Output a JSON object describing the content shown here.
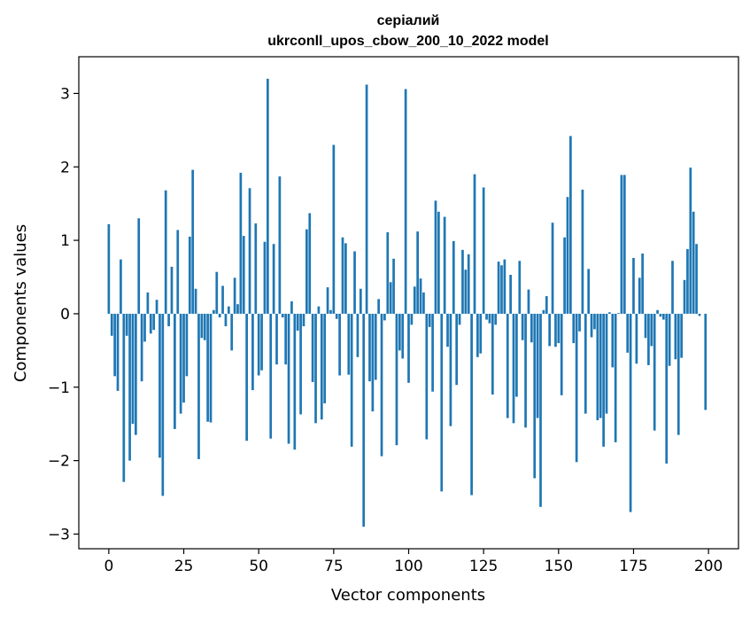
{
  "chart_data": {
    "type": "bar",
    "title_lines": [
      "серіалий",
      "ukrconll_upos_cbow_200_10_2022 model"
    ],
    "xlabel": "Vector components",
    "ylabel": "Components values",
    "xlim": [
      -10,
      210
    ],
    "ylim": [
      -3.2,
      3.5
    ],
    "xticks": [
      0,
      25,
      50,
      75,
      100,
      125,
      150,
      175,
      200
    ],
    "yticks": [
      -3,
      -2,
      -1,
      0,
      1,
      2,
      3
    ],
    "ytick_labels": [
      "−3",
      "−2",
      "−1",
      "0",
      "1",
      "2",
      "3"
    ],
    "bar_color": "#1f77b4",
    "grid": false,
    "x": [
      0,
      1,
      2,
      3,
      4,
      5,
      6,
      7,
      8,
      9,
      10,
      11,
      12,
      13,
      14,
      15,
      16,
      17,
      18,
      19,
      20,
      21,
      22,
      23,
      24,
      25,
      26,
      27,
      28,
      29,
      30,
      31,
      32,
      33,
      34,
      35,
      36,
      37,
      38,
      39,
      40,
      41,
      42,
      43,
      44,
      45,
      46,
      47,
      48,
      49,
      50,
      51,
      52,
      53,
      54,
      55,
      56,
      57,
      58,
      59,
      60,
      61,
      62,
      63,
      64,
      65,
      66,
      67,
      68,
      69,
      70,
      71,
      72,
      73,
      74,
      75,
      76,
      77,
      78,
      79,
      80,
      81,
      82,
      83,
      84,
      85,
      86,
      87,
      88,
      89,
      90,
      91,
      92,
      93,
      94,
      95,
      96,
      97,
      98,
      99,
      100,
      101,
      102,
      103,
      104,
      105,
      106,
      107,
      108,
      109,
      110,
      111,
      112,
      113,
      114,
      115,
      116,
      117,
      118,
      119,
      120,
      121,
      122,
      123,
      124,
      125,
      126,
      127,
      128,
      129,
      130,
      131,
      132,
      133,
      134,
      135,
      136,
      137,
      138,
      139,
      140,
      141,
      142,
      143,
      144,
      145,
      146,
      147,
      148,
      149,
      150,
      151,
      152,
      153,
      154,
      155,
      156,
      157,
      158,
      159,
      160,
      161,
      162,
      163,
      164,
      165,
      166,
      167,
      168,
      169,
      170,
      171,
      172,
      173,
      174,
      175,
      176,
      177,
      178,
      179,
      180,
      181,
      182,
      183,
      184,
      185,
      186,
      187,
      188,
      189,
      190,
      191,
      192,
      193,
      194,
      195,
      196,
      197,
      198,
      199
    ],
    "values": [
      1.22,
      -0.3,
      -0.85,
      -1.05,
      0.74,
      -2.29,
      -0.3,
      -2.0,
      -1.5,
      -1.65,
      1.3,
      -0.92,
      -0.38,
      0.29,
      -0.27,
      -0.22,
      0.19,
      -1.96,
      -2.48,
      1.68,
      -0.17,
      0.64,
      -1.57,
      1.14,
      -1.36,
      -1.21,
      -0.85,
      1.05,
      1.96,
      0.34,
      -1.98,
      -0.33,
      -0.36,
      -1.47,
      -1.48,
      0.05,
      0.57,
      -0.05,
      0.38,
      -0.17,
      0.1,
      -0.5,
      0.49,
      0.13,
      1.92,
      1.06,
      -1.73,
      1.71,
      -1.04,
      1.23,
      -0.84,
      -0.77,
      0.98,
      3.2,
      -1.7,
      0.95,
      -0.69,
      1.87,
      -0.05,
      -0.69,
      -1.77,
      0.17,
      -1.85,
      -0.23,
      -1.37,
      -0.17,
      1.15,
      1.37,
      -0.93,
      -1.49,
      0.1,
      -1.44,
      -1.22,
      0.36,
      0.05,
      2.3,
      -0.07,
      -0.84,
      1.04,
      0.96,
      -0.83,
      -1.81,
      0.85,
      -0.59,
      0.34,
      -2.9,
      3.12,
      -0.92,
      -1.33,
      -0.9,
      0.2,
      -1.94,
      -0.09,
      1.11,
      0.43,
      0.75,
      -1.79,
      -0.5,
      -0.61,
      3.06,
      -0.94,
      -0.15,
      0.37,
      1.12,
      0.48,
      0.29,
      -1.71,
      -0.18,
      -1.06,
      1.54,
      1.39,
      -2.42,
      1.32,
      -0.45,
      -1.53,
      0.99,
      -0.97,
      -0.15,
      0.87,
      0.6,
      0.81,
      -2.47,
      1.9,
      -0.59,
      -0.54,
      1.72,
      -0.08,
      -0.13,
      -1.1,
      -0.15,
      0.71,
      0.66,
      0.74,
      -1.42,
      0.53,
      -1.49,
      -1.13,
      0.72,
      -0.36,
      -1.55,
      0.33,
      -0.39,
      -2.24,
      -1.42,
      -2.63,
      0.05,
      0.24,
      -0.44,
      1.24,
      -0.45,
      -0.4,
      -1.11,
      1.04,
      1.59,
      2.42,
      -0.4,
      -2.02,
      -0.24,
      1.69,
      -1.36,
      0.61,
      -0.32,
      -0.21,
      -1.45,
      -1.42,
      -1.81,
      -1.36,
      0.02,
      -0.73,
      -1.75,
      0.01,
      1.89,
      1.89,
      -0.53,
      -2.7,
      0.76,
      -0.68,
      0.49,
      0.82,
      -0.33,
      -0.7,
      -0.44,
      -1.59,
      0.05,
      -0.04,
      -0.08,
      -2.04,
      -0.71,
      0.72,
      -0.62,
      -1.65,
      -0.6,
      0.46,
      0.88,
      1.99,
      1.39,
      0.95,
      -0.03,
      0.0,
      -1.31
    ]
  }
}
